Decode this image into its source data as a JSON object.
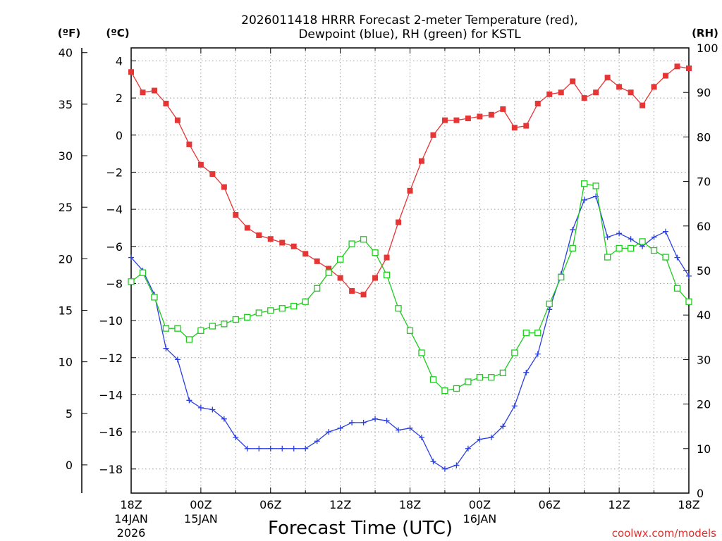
{
  "chart_data": {
    "type": "line",
    "title_line1": "2026011418 HRRR Forecast 2-meter Temperature (red),",
    "title_line2": "Dewpoint (blue), RH (green) for KSTL",
    "units": {
      "fahrenheit": "(ºF)",
      "celsius": "(ºC)",
      "rh": "(RH)"
    },
    "xlabel": "Forecast Time (UTC)",
    "credit": "coolwx.com/models",
    "x_hours": [
      0,
      1,
      2,
      3,
      4,
      5,
      6,
      7,
      8,
      9,
      10,
      11,
      12,
      13,
      14,
      15,
      16,
      17,
      18,
      19,
      20,
      21,
      22,
      23,
      24,
      25,
      26,
      27,
      28,
      29,
      30,
      31,
      32,
      33,
      34,
      35,
      36,
      37,
      38,
      39,
      40,
      41,
      42,
      43,
      44,
      45,
      46,
      47,
      48
    ],
    "xlim_hours": [
      0,
      48
    ],
    "x_ticks": [
      {
        "hour": 0,
        "label": "18Z",
        "sub1": "14JAN",
        "sub2": "2026"
      },
      {
        "hour": 6,
        "label": "00Z",
        "sub1": "15JAN",
        "sub2": ""
      },
      {
        "hour": 12,
        "label": "06Z",
        "sub1": "",
        "sub2": ""
      },
      {
        "hour": 18,
        "label": "12Z",
        "sub1": "",
        "sub2": ""
      },
      {
        "hour": 24,
        "label": "18Z",
        "sub1": "",
        "sub2": ""
      },
      {
        "hour": 30,
        "label": "00Z",
        "sub1": "16JAN",
        "sub2": ""
      },
      {
        "hour": 36,
        "label": "06Z",
        "sub1": "",
        "sub2": ""
      },
      {
        "hour": 42,
        "label": "12Z",
        "sub1": "",
        "sub2": ""
      },
      {
        "hour": 48,
        "label": "18Z",
        "sub1": "",
        "sub2": ""
      }
    ],
    "celsius_axis": {
      "ylim": [
        -19.3,
        4.7
      ],
      "ticks": [
        4,
        2,
        0,
        -2,
        -4,
        -6,
        -8,
        -10,
        -12,
        -14,
        -16,
        -18
      ]
    },
    "fahrenheit_axis": {
      "ylim": [
        -2.74,
        40.46
      ],
      "ticks": [
        40,
        35,
        30,
        25,
        20,
        15,
        10,
        5,
        0
      ]
    },
    "rh_axis": {
      "ylim": [
        0,
        100
      ],
      "ticks": [
        100,
        90,
        80,
        70,
        60,
        50,
        40,
        30,
        20,
        10,
        0
      ]
    },
    "grid": true,
    "series": [
      {
        "name": "Temperature",
        "axis": "celsius",
        "color": "#e53535",
        "marker": "filled-square",
        "values": [
          3.4,
          2.3,
          2.4,
          1.7,
          0.8,
          -0.5,
          -1.6,
          -2.1,
          -2.8,
          -4.3,
          -5.0,
          -5.4,
          -5.6,
          -5.8,
          -6.0,
          -6.4,
          -6.8,
          -7.2,
          -7.7,
          -8.4,
          -8.6,
          -7.7,
          -6.6,
          -4.7,
          -3.0,
          -1.4,
          0.0,
          0.8,
          0.8,
          0.9,
          1.0,
          1.1,
          1.4,
          0.4,
          0.5,
          1.7,
          2.2,
          2.3,
          2.9,
          2.0,
          2.3,
          3.1,
          2.6,
          2.3,
          1.6,
          2.6,
          3.2,
          3.7,
          3.6
        ]
      },
      {
        "name": "Dewpoint",
        "axis": "celsius",
        "color": "#2a3fe0",
        "marker": "plus",
        "values": [
          -6.6,
          -7.3,
          -8.6,
          -11.5,
          -12.1,
          -14.3,
          -14.7,
          -14.8,
          -15.3,
          -16.3,
          -16.9,
          -16.9,
          -16.9,
          -16.9,
          -16.9,
          -16.9,
          -16.5,
          -16.0,
          -15.8,
          -15.5,
          -15.5,
          -15.3,
          -15.4,
          -15.9,
          -15.8,
          -16.3,
          -17.6,
          -18.0,
          -17.8,
          -16.9,
          -16.4,
          -16.3,
          -15.7,
          -14.6,
          -12.8,
          -11.8,
          -9.4,
          -7.5,
          -5.1,
          -3.5,
          -3.3,
          -5.5,
          -5.3,
          -5.6,
          -6.0,
          -5.5,
          -5.2,
          -6.6,
          -7.6
        ]
      },
      {
        "name": "RH",
        "axis": "rh",
        "color": "#1ecc1e",
        "marker": "open-square",
        "values": [
          47.5,
          49.5,
          44.0,
          37.0,
          37.0,
          34.5,
          36.5,
          37.5,
          38.0,
          39.0,
          39.5,
          40.5,
          41.0,
          41.5,
          42.0,
          43.0,
          46.0,
          49.5,
          52.5,
          56.0,
          57.0,
          54.0,
          49.0,
          41.5,
          36.5,
          31.5,
          25.5,
          23.0,
          23.5,
          25.0,
          26.0,
          26.0,
          27.0,
          31.5,
          36.0,
          36.0,
          42.5,
          48.5,
          55.0,
          69.5,
          69.0,
          53.0,
          55.0,
          55.0,
          56.5,
          54.5,
          53.0,
          46.0,
          43.0
        ]
      }
    ]
  }
}
